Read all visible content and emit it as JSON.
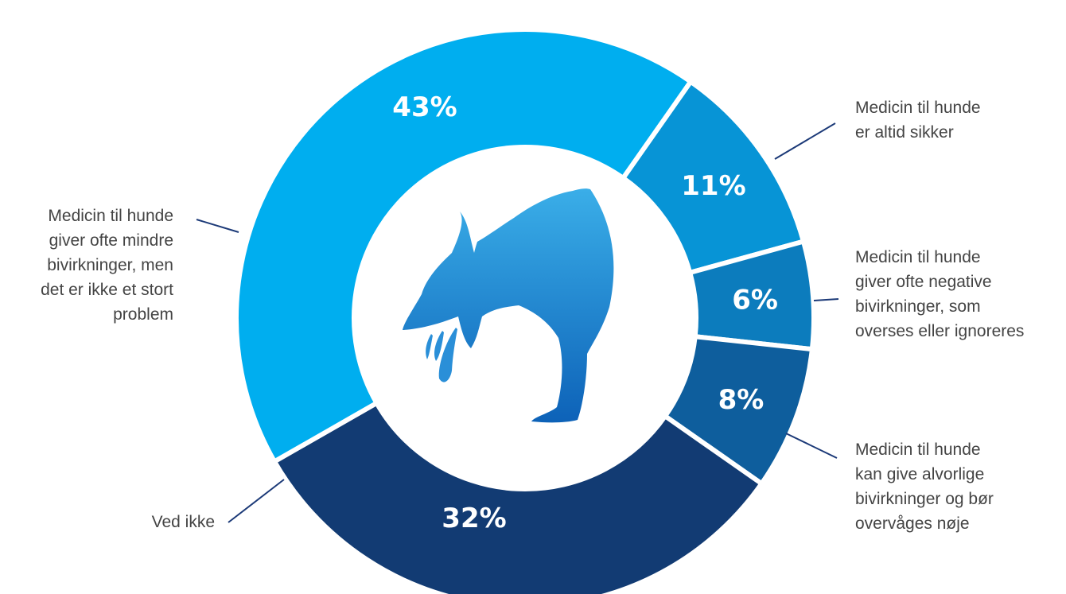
{
  "chart_data": {
    "type": "pie",
    "donut": true,
    "title": "",
    "categories": [
      "Medicin til hunde giver ofte mindre bivirkninger, men det er ikke et stort problem",
      "Medicin til hunde er altid sikker",
      "Medicin til hunde giver ofte negative bivirkninger, som overses eller ignoreres",
      "Medicin til hunde kan give alvorlige bivirkninger og bør overvåges nøje",
      "Ved ikke"
    ],
    "values": [
      43,
      11,
      6,
      8,
      32
    ],
    "value_labels": [
      "43%",
      "11%",
      "6%",
      "8%",
      "32%"
    ],
    "label_lines": [
      [
        "Medicin til hunde",
        "giver ofte mindre",
        "bivirkninger, men",
        "det er ikke et stort",
        "problem"
      ],
      [
        "Medicin til hunde",
        "er altid sikker"
      ],
      [
        "Medicin til hunde",
        "giver ofte negative",
        "bivirkninger, som",
        "overses eller ignoreres"
      ],
      [
        "Medicin til hunde",
        "kan give alvorlige",
        "bivirkninger og bør",
        "overvåges nøje"
      ],
      [
        "Ved ikke"
      ]
    ],
    "colors": [
      "#00aeef",
      "#0794d6",
      "#0c7cbd",
      "#0e5e9d",
      "#123b73"
    ],
    "center_icon": "vomiting-dog-icon",
    "legend": "none"
  }
}
